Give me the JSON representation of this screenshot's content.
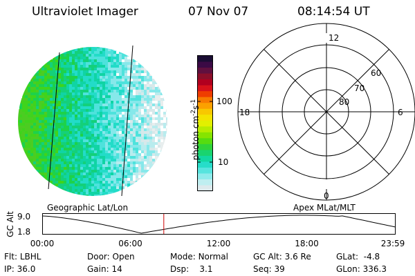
{
  "header": {
    "instrument": "Ultraviolet Imager",
    "date": "07 Nov 07",
    "time": "08:14:54 UT"
  },
  "colorbar": {
    "unit_label": "photon cm",
    "unit_sup1": "-2",
    "unit_mid": "s",
    "unit_sup2": "-1",
    "tick_high": "100",
    "tick_low": "10",
    "colors": [
      "#1a0d33",
      "#3b0a45",
      "#60103f",
      "#8b0f2a",
      "#b1001f",
      "#d8121a",
      "#ef3d00",
      "#f77b00",
      "#fba100",
      "#f8c800",
      "#f3e400",
      "#e2f000",
      "#b7ec00",
      "#86e400",
      "#56dc10",
      "#2fd33a",
      "#19d46f",
      "#12d8a2",
      "#26ddc9",
      "#57e4de",
      "#8febeb",
      "#bfeef0",
      "#dde9ec"
    ]
  },
  "polar_plot": {
    "mlt_top": "12",
    "mlt_left": "18",
    "mlt_right": "6",
    "mlt_bottom": "0",
    "lat_60": "60",
    "lat_70": "70",
    "lat_80": "80"
  },
  "labels": {
    "geo_label": "Geographic Lat/Lon",
    "apex_label": "Apex MLat/MLT",
    "gc_alt_axis": "GC Alt",
    "alt_high": "9.0",
    "alt_low": "1.8"
  },
  "timeline": {
    "ticks": [
      "00:00",
      "06:00",
      "12:00",
      "18:00",
      "23:59"
    ],
    "current_hour": 8.25
  },
  "status": {
    "filter_label": "Flt:",
    "filter_value": "LBHL",
    "ip_label": "IP:",
    "ip_value": "36.0",
    "door_label": "Door:",
    "door_value": "Open",
    "gain_label": "Gain:",
    "gain_value": "14",
    "mode_label": "Mode:",
    "mode_value": "Normal",
    "dsp_label": "Dsp:",
    "dsp_value": "3.1",
    "gcalt_label": "GC Alt:",
    "gcalt_value": "3.6 Re",
    "seq_label": "Seq:",
    "seq_value": "39",
    "glat_label": "GLat:",
    "glat_value": "-4.8",
    "glon_label": "GLon:",
    "glon_value": "336.3"
  }
}
